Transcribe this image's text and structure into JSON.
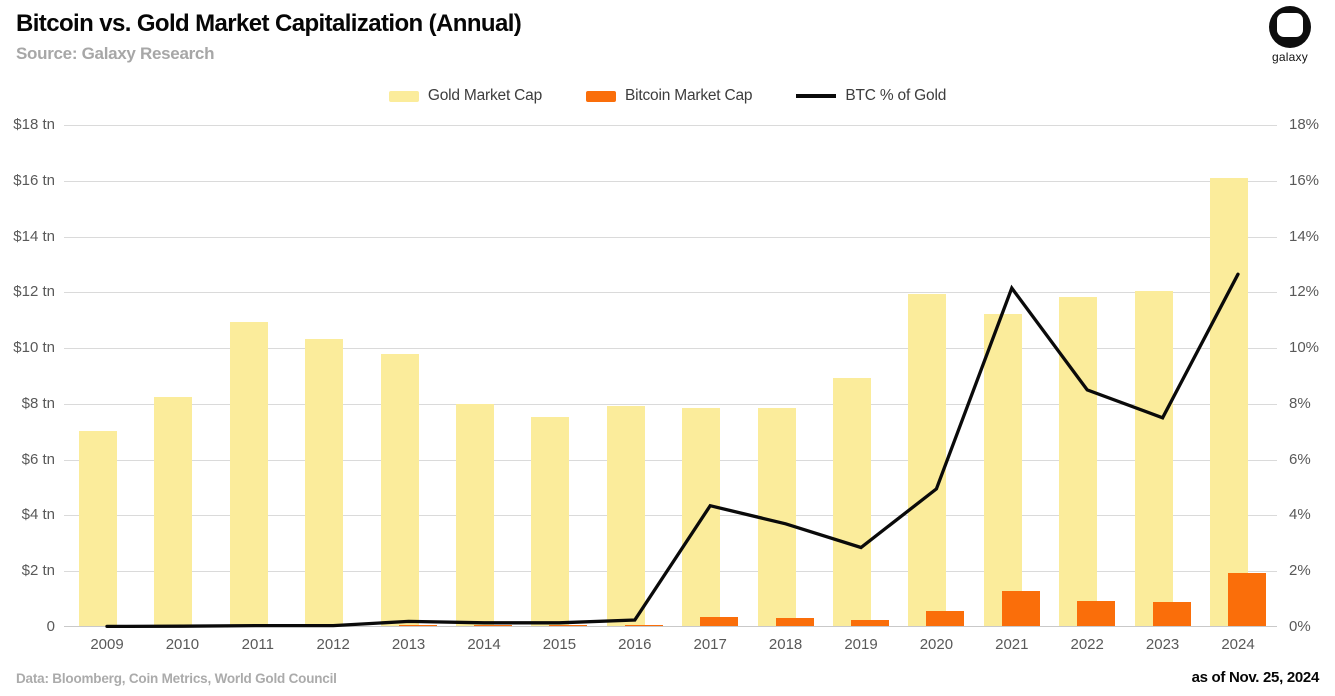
{
  "header": {
    "title": "Bitcoin vs. Gold Market Capitalization (Annual)",
    "subtitle": "Source: Galaxy Research",
    "logo_text": "galaxy"
  },
  "legend": {
    "items": [
      {
        "label": "Gold Market Cap",
        "swatch": "gold"
      },
      {
        "label": "Bitcoin Market Cap",
        "swatch": "bitcoin"
      },
      {
        "label": "BTC % of Gold",
        "swatch": "line"
      }
    ]
  },
  "colors": {
    "gold": "#FBEC9B",
    "bitcoin": "#FA6E0A",
    "line": "#0A0A0A",
    "grid": "#DADADA",
    "axis_text": "#595959",
    "subtitle_text": "#A7A7A7"
  },
  "footer": {
    "data_note": "Data: Bloomberg, Coin Metrics, World Gold Council",
    "as_of": "as of Nov. 25, 2024"
  },
  "chart_data": {
    "type": "bar",
    "subtype": "grouped bars with overlaid line, dual axes",
    "categories": [
      "2009",
      "2010",
      "2011",
      "2012",
      "2013",
      "2014",
      "2015",
      "2016",
      "2017",
      "2018",
      "2019",
      "2020",
      "2021",
      "2022",
      "2023",
      "2024"
    ],
    "series": [
      {
        "name": "Gold Market Cap",
        "type": "bar",
        "color_key": "gold",
        "unit": "$ tn",
        "axis": "left",
        "values": [
          7.0,
          8.2,
          10.9,
          10.3,
          9.75,
          7.95,
          7.5,
          7.9,
          7.8,
          7.8,
          8.9,
          11.9,
          11.2,
          11.8,
          12.0,
          16.05
        ]
      },
      {
        "name": "Bitcoin Market Cap",
        "type": "bar",
        "color_key": "bitcoin",
        "unit": "$ tn",
        "axis": "left",
        "values": [
          0,
          0,
          0,
          0,
          0.05,
          0.05,
          0.05,
          0.05,
          0.33,
          0.28,
          0.2,
          0.55,
          1.25,
          0.9,
          0.85,
          1.9
        ]
      },
      {
        "name": "BTC % of Gold",
        "type": "line",
        "color_key": "line",
        "unit": "%",
        "axis": "right",
        "values": [
          0.02,
          0.03,
          0.05,
          0.05,
          0.2,
          0.15,
          0.15,
          0.25,
          4.35,
          3.7,
          2.85,
          4.95,
          12.15,
          8.5,
          7.5,
          12.65
        ]
      }
    ],
    "left_axis": {
      "min": 0,
      "max": 18,
      "step": 2,
      "ticks": [
        "$18 tn",
        "$16 tn",
        "$14 tn",
        "$12 tn",
        "$10 tn",
        "$8 tn",
        "$6 tn",
        "$4 tn",
        "$2 tn",
        "0"
      ]
    },
    "right_axis": {
      "min": 0,
      "max": 18,
      "step": 2,
      "ticks": [
        "18%",
        "16%",
        "14%",
        "12%",
        "10%",
        "8%",
        "6%",
        "4%",
        "2%",
        "0%"
      ]
    },
    "grid": true,
    "legend_position": "top"
  }
}
